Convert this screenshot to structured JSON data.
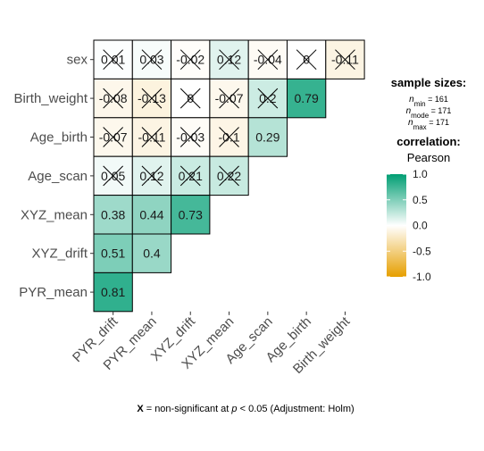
{
  "chart_data": {
    "type": "heatmap",
    "title": "",
    "x_labels": [
      "PYR_drift",
      "PYR_mean",
      "XYZ_drift",
      "XYZ_mean",
      "Age_scan",
      "Age_birth",
      "Birth_weight"
    ],
    "y_labels": [
      "sex",
      "Birth_weight",
      "Age_birth",
      "Age_scan",
      "XYZ_mean",
      "XYZ_drift",
      "PYR_mean"
    ],
    "rows": [
      {
        "label": "sex",
        "cells": [
          {
            "text": "0.01",
            "value": 0.01,
            "sig": false
          },
          {
            "text": "0.03",
            "value": 0.03,
            "sig": false
          },
          {
            "text": "-0.02",
            "value": -0.02,
            "sig": false
          },
          {
            "text": "0.12",
            "value": 0.12,
            "sig": false
          },
          {
            "text": "-0.04",
            "value": -0.04,
            "sig": false
          },
          {
            "text": "0",
            "value": 0,
            "sig": false
          },
          {
            "text": "-0.11",
            "value": -0.11,
            "sig": false
          }
        ]
      },
      {
        "label": "Birth_weight",
        "cells": [
          {
            "text": "-0.08",
            "value": -0.08,
            "sig": false
          },
          {
            "text": "-0.13",
            "value": -0.13,
            "sig": false
          },
          {
            "text": "0",
            "value": 0,
            "sig": false
          },
          {
            "text": "-0.07",
            "value": -0.07,
            "sig": false
          },
          {
            "text": "0.2",
            "value": 0.2,
            "sig": false
          },
          {
            "text": "0.79",
            "value": 0.79,
            "sig": true
          }
        ]
      },
      {
        "label": "Age_birth",
        "cells": [
          {
            "text": "-0.07",
            "value": -0.07,
            "sig": false
          },
          {
            "text": "-0.11",
            "value": -0.11,
            "sig": false
          },
          {
            "text": "-0.03",
            "value": -0.03,
            "sig": false
          },
          {
            "text": "-0.1",
            "value": -0.1,
            "sig": false
          },
          {
            "text": "0.29",
            "value": 0.29,
            "sig": true
          }
        ]
      },
      {
        "label": "Age_scan",
        "cells": [
          {
            "text": "0.05",
            "value": 0.05,
            "sig": false
          },
          {
            "text": "0.12",
            "value": 0.12,
            "sig": false
          },
          {
            "text": "0.21",
            "value": 0.21,
            "sig": false
          },
          {
            "text": "0.22",
            "value": 0.22,
            "sig": false
          }
        ]
      },
      {
        "label": "XYZ_mean",
        "cells": [
          {
            "text": "0.38",
            "value": 0.38,
            "sig": true
          },
          {
            "text": "0.44",
            "value": 0.44,
            "sig": true
          },
          {
            "text": "0.73",
            "value": 0.73,
            "sig": true
          }
        ]
      },
      {
        "label": "XYZ_drift",
        "cells": [
          {
            "text": "0.51",
            "value": 0.51,
            "sig": true
          },
          {
            "text": "0.4",
            "value": 0.4,
            "sig": true
          }
        ]
      },
      {
        "label": "PYR_mean",
        "cells": [
          {
            "text": "0.81",
            "value": 0.81,
            "sig": true
          }
        ]
      }
    ],
    "color_scale": {
      "low": "#E69F00",
      "mid": "#FFFFFF",
      "high": "#009E73",
      "domain": [
        -1,
        1
      ]
    },
    "legend": {
      "position": "right",
      "sample_title": "sample sizes:",
      "n_min": {
        "label": "min",
        "value": "161"
      },
      "n_mode": {
        "label": "mode",
        "value": "171"
      },
      "n_max": {
        "label": "max",
        "value": "171"
      },
      "corr_title": "correlation:",
      "corr_method": "Pearson",
      "ticks": [
        "1.0",
        "0.5",
        "0.0",
        "-0.5",
        "-1.0"
      ]
    },
    "caption": {
      "mark": "X",
      "text_before": " = non-significant at ",
      "p": "p",
      "text_after": " < 0.05 (Adjustment: Holm)"
    }
  }
}
